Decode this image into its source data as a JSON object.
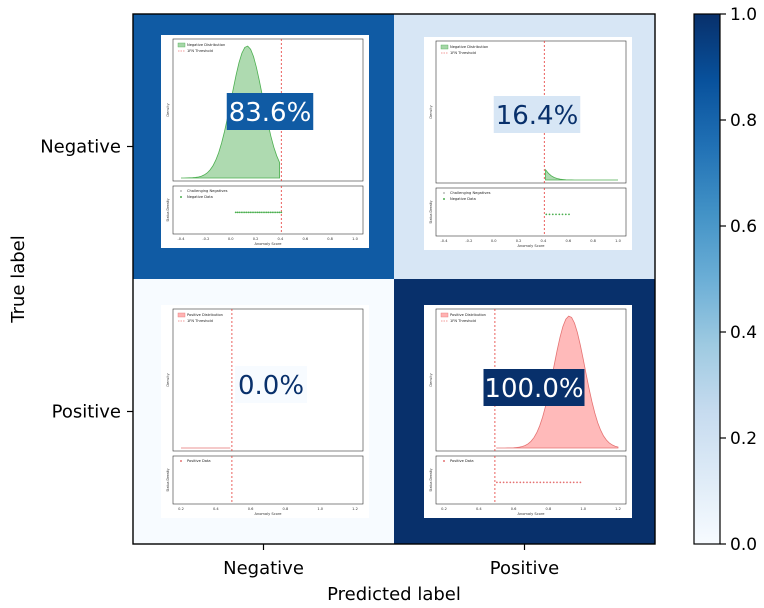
{
  "chart_data": {
    "type": "heatmap",
    "xlabel": "Predicted label",
    "ylabel": "True label",
    "row_labels": [
      "Negative",
      "Positive"
    ],
    "col_labels": [
      "Negative",
      "Positive"
    ],
    "values": [
      [
        0.836,
        0.164
      ],
      [
        0.0,
        1.0
      ]
    ],
    "cell_text": [
      [
        "83.6%",
        "16.4%"
      ],
      [
        "0.0%",
        "100.0%"
      ]
    ],
    "colorbar": {
      "range": [
        0.0,
        1.0
      ],
      "ticks": [
        "0.0",
        "0.2",
        "0.4",
        "0.6",
        "0.8",
        "1.0"
      ],
      "colormap": "Blues"
    },
    "insets": [
      {
        "cell": "negative-negative",
        "distribution_color": "#a5d6a7",
        "line_color": "#4caf50",
        "legend_top": [
          "Negative Distribution",
          "1FN Threshold"
        ],
        "legend_bottom": [
          "Challenging Negatives",
          "Negative Data"
        ],
        "ylabel_top": "Density",
        "ylabel_bottom": "Status Density",
        "xlabel": "Anomaly Score",
        "xticks": [
          "-0.4",
          "-0.2",
          "0.0",
          "0.2",
          "0.4",
          "0.6",
          "0.8",
          "1.0"
        ]
      },
      {
        "cell": "negative-positive",
        "distribution_color": "#a5d6a7",
        "line_color": "#4caf50",
        "legend_top": [
          "Negative Distribution",
          "1FN Threshold"
        ],
        "legend_bottom": [
          "Challenging Negatives",
          "Negative Data"
        ],
        "ylabel_top": "Density",
        "ylabel_bottom": "Status Density",
        "xlabel": "Anomaly Score",
        "xticks": [
          "-0.4",
          "-0.2",
          "0.0",
          "0.2",
          "0.4",
          "0.6",
          "0.8",
          "1.0"
        ]
      },
      {
        "cell": "positive-negative",
        "distribution_color": "#ffb3b3",
        "line_color": "#e57373",
        "legend_top": [
          "Positive Distribution",
          "1FN Threshold"
        ],
        "legend_bottom": [
          "Positive Data"
        ],
        "ylabel_top": "Density",
        "ylabel_bottom": "Status Density",
        "xlabel": "Anomaly Score",
        "xticks": [
          "0.2",
          "0.4",
          "0.6",
          "0.8",
          "1.0",
          "1.2"
        ]
      },
      {
        "cell": "positive-positive",
        "distribution_color": "#ffb3b3",
        "line_color": "#e57373",
        "legend_top": [
          "Positive Distribution",
          "1FN Threshold"
        ],
        "legend_bottom": [
          "Positive Data"
        ],
        "ylabel_top": "Density",
        "ylabel_bottom": "Status Density",
        "xlabel": "Anomaly Score",
        "xticks": [
          "0.2",
          "0.4",
          "0.6",
          "0.8",
          "1.0",
          "1.2"
        ]
      }
    ]
  }
}
